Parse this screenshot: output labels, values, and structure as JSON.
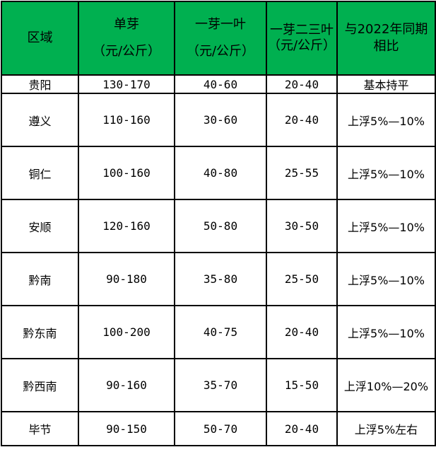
{
  "header": {
    "region": "区域",
    "single_bud": "单芽",
    "single_bud_unit": "（元/公斤）",
    "one_bud_one_leaf": "一芽一叶",
    "one_bud_one_leaf_unit": "（元/公斤）",
    "one_bud_two_three_leaves": "一芽二三叶",
    "one_bud_two_three_leaves_unit": "（元/公斤）",
    "yoy": "与2022年同期相比"
  },
  "rows": [
    {
      "region": "贵阳",
      "single_bud": "130-170",
      "one_leaf": "40-60",
      "two_three_leaves": "20-40",
      "yoy": "基本持平"
    },
    {
      "region": "遵义",
      "single_bud": "110-160",
      "one_leaf": "30-60",
      "two_three_leaves": "20-40",
      "yoy": "上浮5%—10%"
    },
    {
      "region": "铜仁",
      "single_bud": "100-160",
      "one_leaf": "40-80",
      "two_three_leaves": "25-55",
      "yoy": "上浮5%—10%"
    },
    {
      "region": "安顺",
      "single_bud": "120-160",
      "one_leaf": "50-80",
      "two_three_leaves": "30-50",
      "yoy": "上浮5%—10%"
    },
    {
      "region": "黔南",
      "single_bud": "90-180",
      "one_leaf": "35-80",
      "two_three_leaves": "25-50",
      "yoy": "上浮5%—10%"
    },
    {
      "region": "黔东南",
      "single_bud": "100-200",
      "one_leaf": "40-75",
      "two_three_leaves": "20-40",
      "yoy": "上浮5%—10%"
    },
    {
      "region": "黔西南",
      "single_bud": "90-160",
      "one_leaf": "35-70",
      "two_three_leaves": "15-50",
      "yoy": "上浮10%—20%"
    },
    {
      "region": "毕节",
      "single_bud": "90-150",
      "one_leaf": "50-70",
      "two_three_leaves": "20-40",
      "yoy": "上浮5%左右"
    }
  ],
  "colors": {
    "header_bg": "#00b050",
    "border": "#000000"
  }
}
